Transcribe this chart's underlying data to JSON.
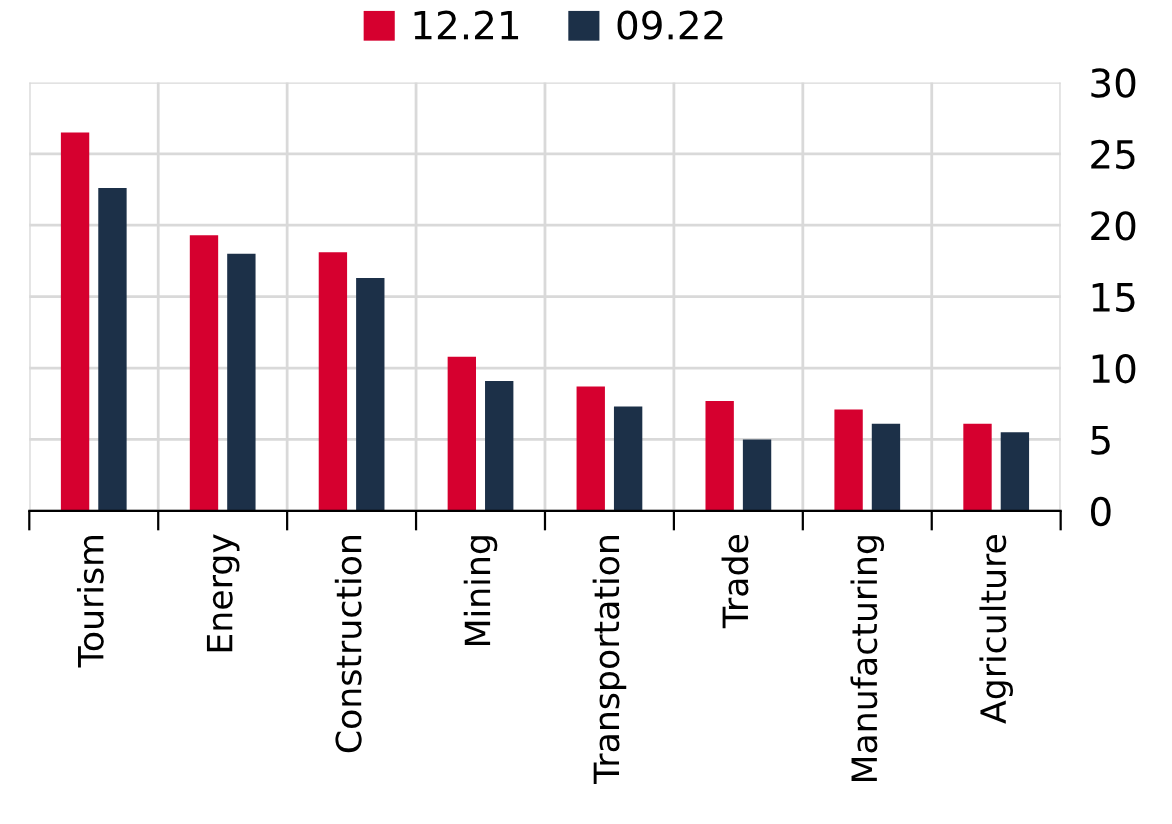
{
  "chart_data": {
    "type": "bar",
    "categories": [
      "Tourism",
      "Energy",
      "Construction",
      "Mining",
      "Transportation",
      "Trade",
      "Manufacturing",
      "Agriculture"
    ],
    "series": [
      {
        "name": "12.21",
        "color": "#d6002f",
        "values": [
          26.5,
          19.3,
          18.1,
          10.8,
          8.7,
          7.7,
          7.1,
          6.1
        ]
      },
      {
        "name": "09.22",
        "color": "#1c3048",
        "values": [
          22.6,
          18.0,
          16.3,
          9.1,
          7.3,
          5.0,
          6.1,
          5.5
        ]
      }
    ],
    "ylim": [
      0,
      30
    ],
    "yticks": [
      0,
      5,
      10,
      15,
      20,
      25,
      30
    ],
    "grid": true,
    "legend": "top"
  }
}
